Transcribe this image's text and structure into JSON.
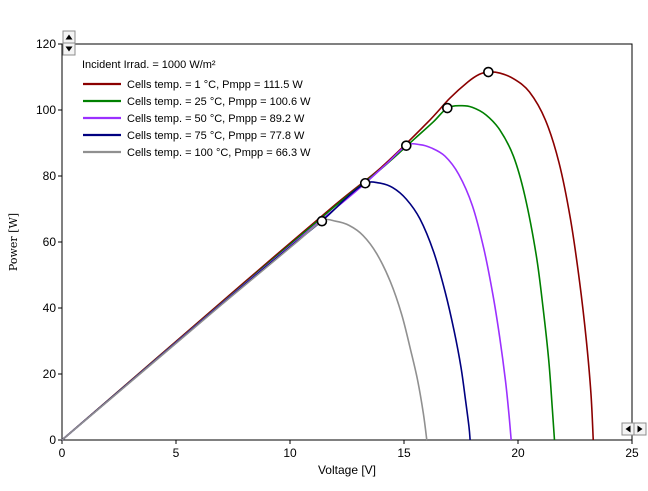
{
  "chart_data": {
    "type": "line",
    "title": "",
    "xlabel": "Voltage [V]",
    "ylabel": "Power [W]",
    "xlim": [
      0,
      25
    ],
    "ylim": [
      0,
      120
    ],
    "grid": false,
    "x_ticks": [
      0,
      5,
      10,
      15,
      20,
      25
    ],
    "y_ticks": [
      0,
      20,
      40,
      60,
      80,
      100,
      120
    ],
    "legend_title": "Incident Irrad. = 1000 W/m²",
    "legend_position": "top-left",
    "series": [
      {
        "name": "Cells temp. = 1 °C,  Pmpp = 111.5 W",
        "color": "#8b0000",
        "voc": 23.3,
        "mpp": {
          "x": 18.7,
          "y": 111.5
        },
        "points": [
          [
            0,
            0
          ],
          [
            4,
            23.9
          ],
          [
            8,
            47.8
          ],
          [
            12,
            71.4
          ],
          [
            14,
            82.6
          ],
          [
            16,
            96
          ],
          [
            17,
            103.5
          ],
          [
            17.8,
            108.5
          ],
          [
            18.3,
            110.8
          ],
          [
            18.7,
            111.5
          ],
          [
            19.2,
            111.2
          ],
          [
            19.8,
            109.5
          ],
          [
            20.5,
            105.5
          ],
          [
            21.2,
            97
          ],
          [
            21.8,
            84
          ],
          [
            22.3,
            67
          ],
          [
            22.7,
            48
          ],
          [
            23,
            30
          ],
          [
            23.2,
            14
          ],
          [
            23.3,
            0
          ]
        ]
      },
      {
        "name": "Cells temp. = 25 °C,  Pmpp = 100.6 W",
        "color": "#008000",
        "voc": 21.6,
        "mpp": {
          "x": 16.9,
          "y": 100.6
        },
        "points": [
          [
            0,
            0
          ],
          [
            4,
            23.7
          ],
          [
            8,
            47.4
          ],
          [
            12,
            71
          ],
          [
            14,
            82.2
          ],
          [
            15.5,
            91.5
          ],
          [
            16.3,
            96.5
          ],
          [
            16.9,
            100.6
          ],
          [
            17.5,
            101.3
          ],
          [
            18,
            100.8
          ],
          [
            18.6,
            98.5
          ],
          [
            19.2,
            94
          ],
          [
            19.8,
            86
          ],
          [
            20.3,
            74
          ],
          [
            20.8,
            56
          ],
          [
            21.1,
            40
          ],
          [
            21.35,
            24
          ],
          [
            21.5,
            10
          ],
          [
            21.6,
            0
          ]
        ]
      },
      {
        "name": "Cells temp. = 50 °C,  Pmpp = 89.2 W",
        "color": "#9b30ff",
        "voc": 19.7,
        "mpp": {
          "x": 15.1,
          "y": 89.2
        },
        "points": [
          [
            0,
            0
          ],
          [
            4,
            23.6
          ],
          [
            8,
            47.2
          ],
          [
            11,
            64.5
          ],
          [
            13,
            76
          ],
          [
            14.2,
            83.5
          ],
          [
            15.1,
            89.2
          ],
          [
            15.7,
            89.5
          ],
          [
            16.2,
            88.5
          ],
          [
            16.8,
            86
          ],
          [
            17.4,
            80.5
          ],
          [
            18,
            71
          ],
          [
            18.5,
            58
          ],
          [
            18.9,
            44
          ],
          [
            19.2,
            31
          ],
          [
            19.45,
            18
          ],
          [
            19.6,
            8
          ],
          [
            19.7,
            0
          ]
        ]
      },
      {
        "name": "Cells temp. = 75 °C,  Pmpp = 77.8 W",
        "color": "#000080",
        "voc": 17.9,
        "mpp": {
          "x": 13.3,
          "y": 77.8
        },
        "points": [
          [
            0,
            0
          ],
          [
            4,
            23.5
          ],
          [
            8,
            47
          ],
          [
            10,
            58.5
          ],
          [
            11.5,
            67
          ],
          [
            12.5,
            73.5
          ],
          [
            13.3,
            77.8
          ],
          [
            13.9,
            77.9
          ],
          [
            14.5,
            76.5
          ],
          [
            15.1,
            73
          ],
          [
            15.7,
            67
          ],
          [
            16.3,
            57
          ],
          [
            16.8,
            45
          ],
          [
            17.2,
            33
          ],
          [
            17.5,
            22
          ],
          [
            17.7,
            12
          ],
          [
            17.85,
            4
          ],
          [
            17.9,
            0
          ]
        ]
      },
      {
        "name": "Cells temp. = 100 °C,  Pmpp = 66.3 W",
        "color": "#909090",
        "voc": 16.0,
        "mpp": {
          "x": 11.4,
          "y": 66.3
        },
        "points": [
          [
            0,
            0
          ],
          [
            4,
            23.4
          ],
          [
            7,
            41
          ],
          [
            9,
            52.5
          ],
          [
            10.3,
            60
          ],
          [
            11.4,
            66.3
          ],
          [
            12,
            66.3
          ],
          [
            12.6,
            65
          ],
          [
            13.2,
            62
          ],
          [
            13.8,
            56.5
          ],
          [
            14.4,
            48
          ],
          [
            14.9,
            38
          ],
          [
            15.3,
            27
          ],
          [
            15.6,
            18
          ],
          [
            15.85,
            8
          ],
          [
            16,
            0
          ]
        ]
      }
    ]
  }
}
